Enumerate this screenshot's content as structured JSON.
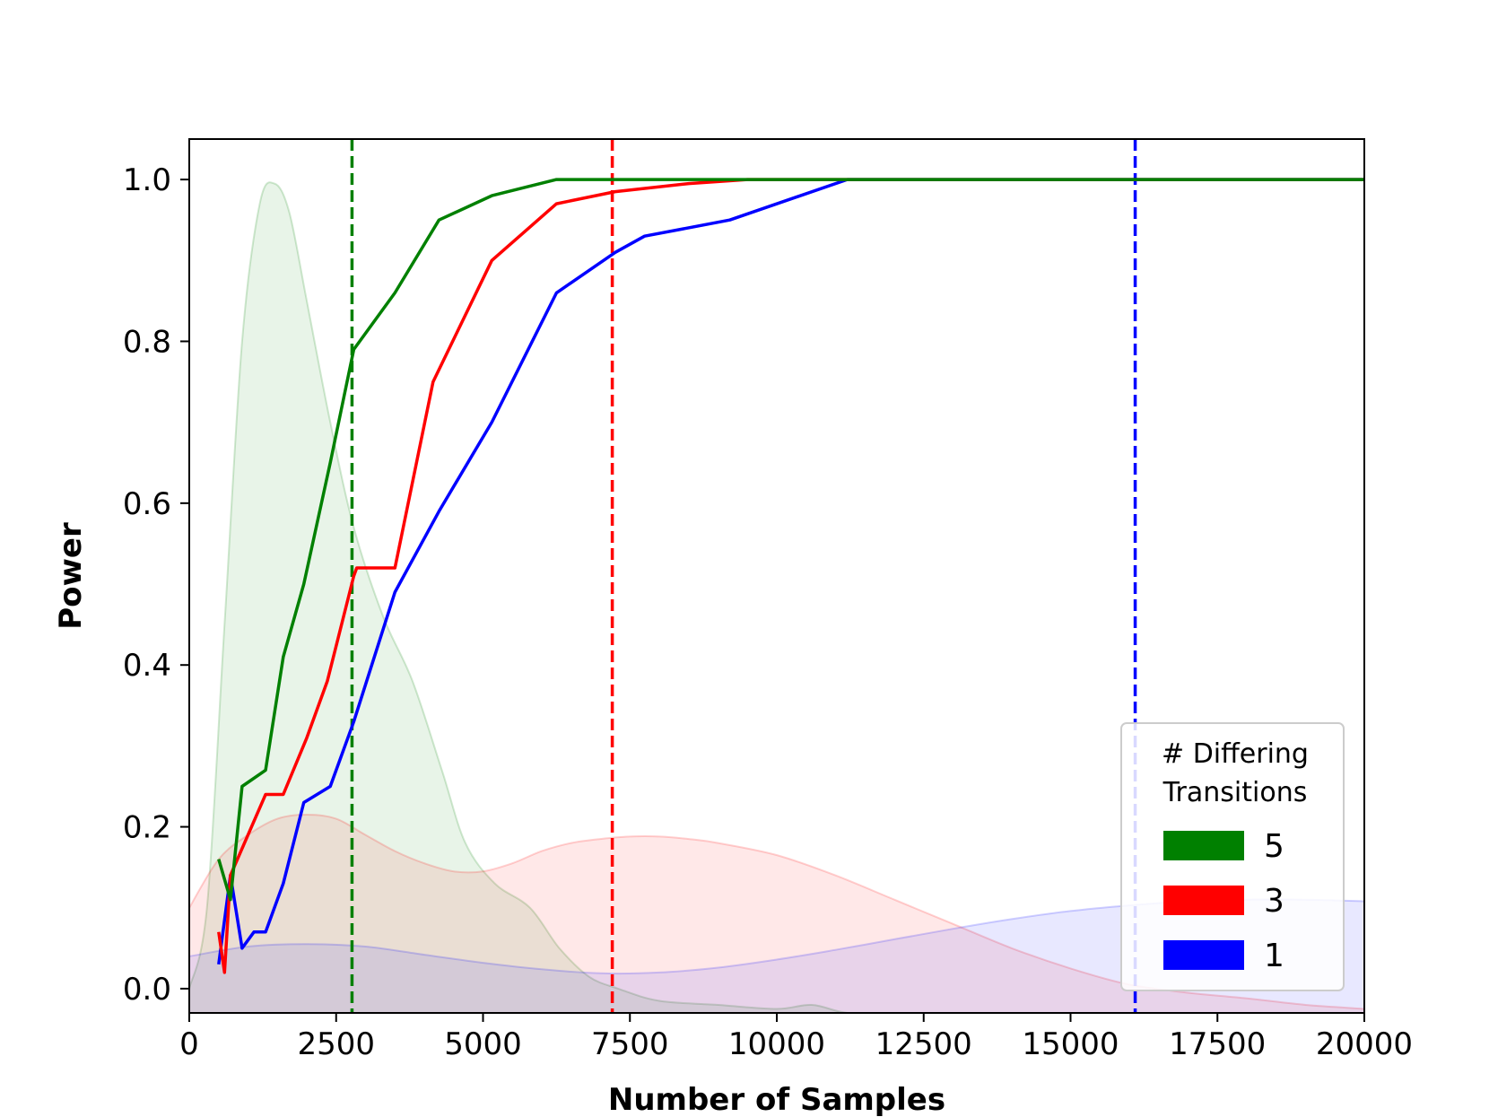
{
  "chart_data": {
    "type": "line",
    "title": "",
    "xlabel": "Number of Samples",
    "ylabel": "Power",
    "xlim": [
      0,
      20000
    ],
    "ylim": [
      -0.03,
      1.05
    ],
    "xticks": [
      "0",
      "2500",
      "5000",
      "7500",
      "10000",
      "12500",
      "15000",
      "17500",
      "20000"
    ],
    "yticks": [
      "0.0",
      "0.2",
      "0.4",
      "0.6",
      "0.8",
      "1.0"
    ],
    "grid": false,
    "legend": {
      "title_line1": "# Differing",
      "title_line2": "Transitions",
      "placement": "lower-right",
      "entries": [
        {
          "label": "5",
          "color": "#008000"
        },
        {
          "label": "3",
          "color": "#ff0000"
        },
        {
          "label": "1",
          "color": "#0000ff"
        }
      ]
    },
    "series": [
      {
        "name": "5",
        "color": "#008000",
        "x": [
          500,
          700,
          900,
          1300,
          1600,
          1950,
          2400,
          2800,
          3500,
          4250,
          5150,
          6250,
          7250,
          8500,
          10000,
          12500,
          15000,
          17500,
          20000
        ],
        "y": [
          0.16,
          0.11,
          0.25,
          0.27,
          0.41,
          0.5,
          0.65,
          0.79,
          0.86,
          0.95,
          0.98,
          1.0,
          1.0,
          1.0,
          1.0,
          1.0,
          1.0,
          1.0,
          1.0
        ]
      },
      {
        "name": "3",
        "color": "#ff0000",
        "x": [
          500,
          600,
          700,
          1000,
          1300,
          1600,
          2000,
          2350,
          2800,
          2850,
          3500,
          4150,
          5150,
          6250,
          7250,
          8500,
          9500,
          12500,
          15000,
          17500,
          20000
        ],
        "y": [
          0.07,
          0.02,
          0.14,
          0.19,
          0.24,
          0.24,
          0.31,
          0.38,
          0.51,
          0.52,
          0.52,
          0.75,
          0.9,
          0.97,
          0.985,
          0.995,
          1.0,
          1.0,
          1.0,
          1.0,
          1.0
        ]
      },
      {
        "name": "1",
        "color": "#0000ff",
        "x": [
          500,
          700,
          900,
          1100,
          1300,
          1600,
          1950,
          2400,
          2800,
          3500,
          4250,
          5150,
          6250,
          7250,
          7750,
          9200,
          11200,
          12500,
          15000,
          17500,
          20000
        ],
        "y": [
          0.03,
          0.14,
          0.05,
          0.07,
          0.07,
          0.13,
          0.23,
          0.25,
          0.33,
          0.49,
          0.59,
          0.7,
          0.86,
          0.91,
          0.93,
          0.95,
          1.0,
          1.0,
          1.0,
          1.0,
          1.0
        ]
      }
    ],
    "vlines": [
      {
        "series": "5",
        "x": 2770,
        "color": "#008000",
        "style": "dashed"
      },
      {
        "series": "3",
        "x": 7200,
        "color": "#ff0000",
        "style": "dashed"
      },
      {
        "series": "1",
        "x": 16100,
        "color": "#0000ff",
        "style": "dashed"
      }
    ],
    "density_areas": [
      {
        "series": "5",
        "color": "#008000",
        "x": [
          0,
          300,
          600,
          900,
          1200,
          1450,
          1700,
          2000,
          2400,
          2800,
          3300,
          3800,
          4300,
          4700,
          5200,
          5800,
          6300,
          6800,
          7300,
          8000,
          9000,
          10000,
          10600,
          11200,
          12000
        ],
        "y": [
          0.0,
          0.1,
          0.45,
          0.8,
          0.97,
          0.995,
          0.96,
          0.85,
          0.7,
          0.57,
          0.46,
          0.38,
          0.27,
          0.18,
          0.13,
          0.1,
          0.05,
          0.015,
          0.0,
          -0.015,
          -0.02,
          -0.025,
          -0.02,
          -0.03,
          -0.03
        ]
      },
      {
        "series": "3",
        "color": "#ff0000",
        "x": [
          0,
          500,
          1000,
          1500,
          2000,
          2500,
          3000,
          3500,
          4000,
          4500,
          5000,
          5500,
          6000,
          6500,
          7000,
          7500,
          8000,
          8500,
          9000,
          10000,
          11000,
          12000,
          13000,
          14000,
          15000,
          16000,
          17000,
          18000,
          19000,
          20000
        ],
        "y": [
          0.1,
          0.16,
          0.19,
          0.21,
          0.215,
          0.21,
          0.19,
          0.17,
          0.155,
          0.145,
          0.145,
          0.155,
          0.17,
          0.18,
          0.185,
          0.188,
          0.188,
          0.185,
          0.18,
          0.165,
          0.14,
          0.11,
          0.08,
          0.05,
          0.025,
          0.005,
          -0.005,
          -0.012,
          -0.02,
          -0.025
        ]
      },
      {
        "series": "1",
        "color": "#0000ff",
        "x": [
          0,
          1000,
          2000,
          3000,
          4000,
          5000,
          6000,
          7000,
          8000,
          9000,
          10000,
          11000,
          12000,
          13000,
          14000,
          15000,
          16000,
          17000,
          18000,
          19000,
          20000
        ],
        "y": [
          0.04,
          0.052,
          0.055,
          0.052,
          0.042,
          0.032,
          0.024,
          0.019,
          0.02,
          0.026,
          0.036,
          0.048,
          0.061,
          0.074,
          0.086,
          0.096,
          0.103,
          0.108,
          0.11,
          0.11,
          0.108
        ]
      }
    ]
  }
}
